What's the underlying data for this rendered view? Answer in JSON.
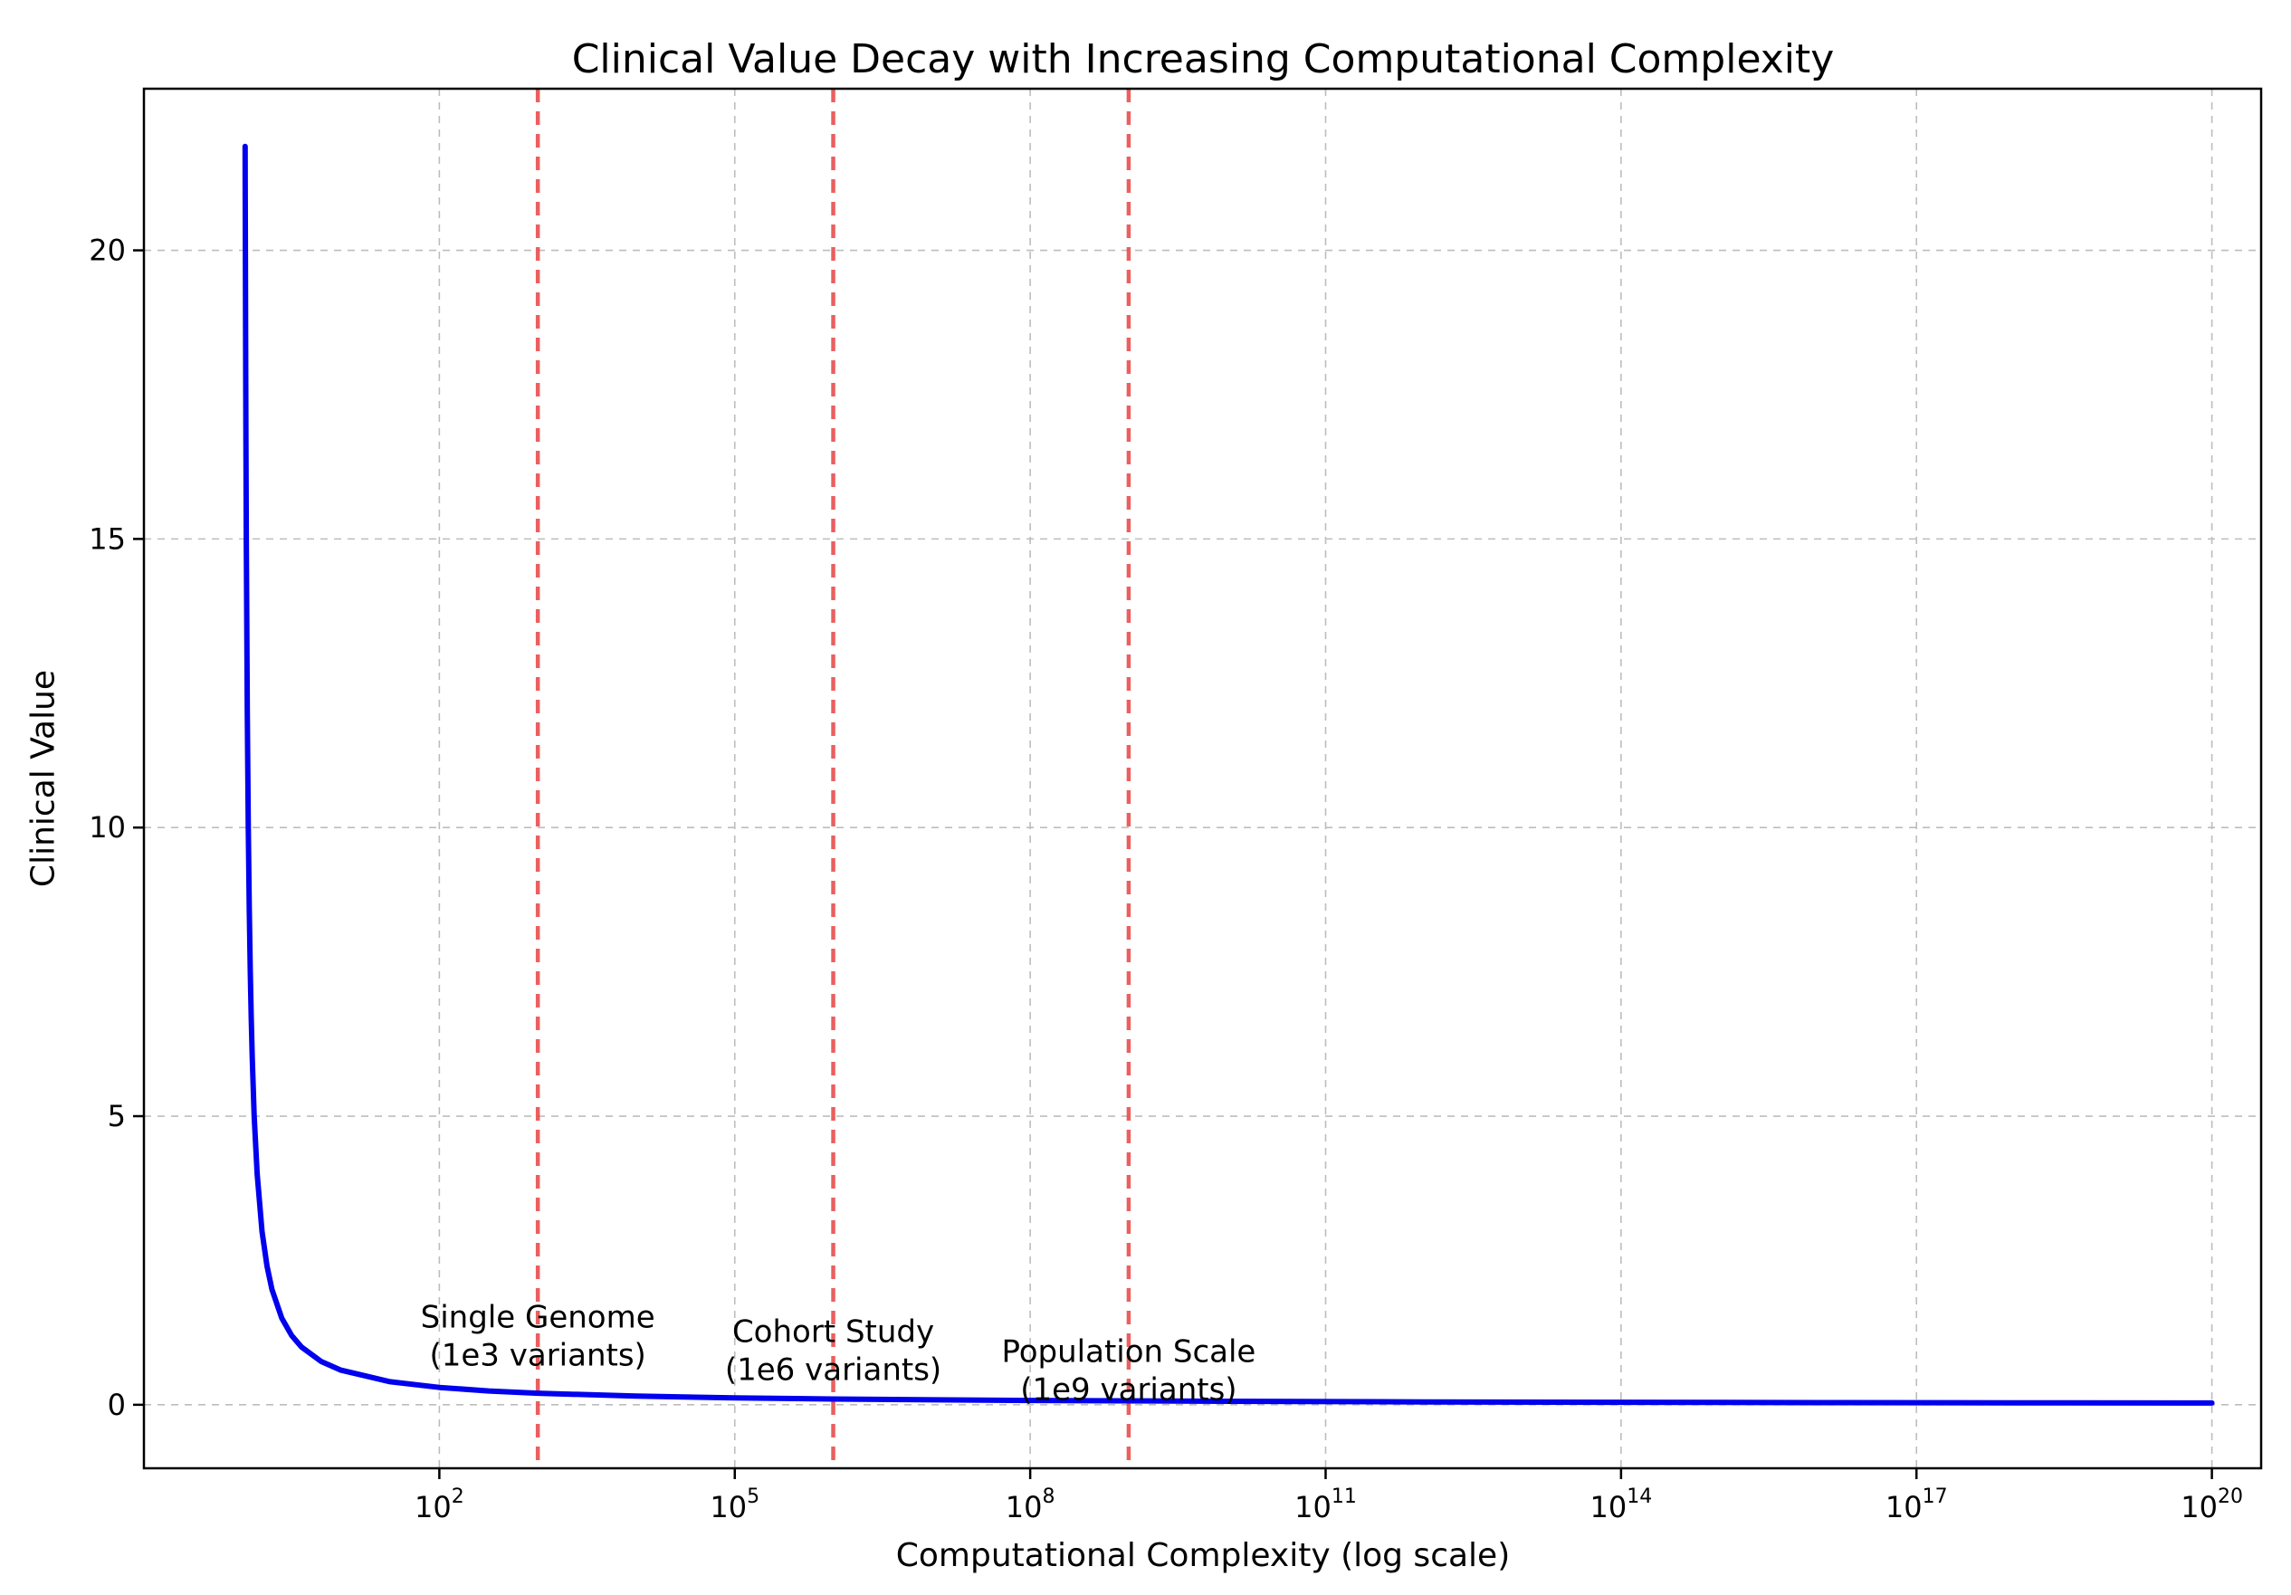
{
  "chart_data": {
    "type": "line",
    "title": "Clinical Value Decay with Increasing Computational Complexity",
    "xlabel": "Computational Complexity (log scale)",
    "ylabel": "Clinical Value",
    "x_scale": "log",
    "xlim_log10": [
      -1,
      20.5
    ],
    "ylim": [
      -1.1,
      22.8
    ],
    "x_tick_base": "10",
    "x_tick_exponents": [
      2,
      5,
      8,
      11,
      14,
      17,
      20
    ],
    "y_ticks": [
      0,
      5,
      10,
      15,
      20
    ],
    "grid": true,
    "grid_style": "dashed",
    "legend": "none",
    "colors": {
      "curve": "#0000ee",
      "vline": "#e84343",
      "grid": "#bdbdbd",
      "spine": "#000000",
      "text": "#000000"
    },
    "series": [
      {
        "name": "clinical-value-curve",
        "color": "#0000ee",
        "points_log10x_y": [
          [
            0.0275,
            21.8
          ],
          [
            0.0285,
            21.05
          ],
          [
            0.03,
            20.0
          ],
          [
            0.032,
            18.75
          ],
          [
            0.034,
            17.65
          ],
          [
            0.036,
            16.67
          ],
          [
            0.04,
            15.0
          ],
          [
            0.045,
            13.33
          ],
          [
            0.05,
            12.0
          ],
          [
            0.055,
            10.91
          ],
          [
            0.06,
            10.0
          ],
          [
            0.07,
            8.57
          ],
          [
            0.08,
            7.5
          ],
          [
            0.09,
            6.67
          ],
          [
            0.1,
            6.0
          ],
          [
            0.12,
            5.0
          ],
          [
            0.15,
            4.0
          ],
          [
            0.2,
            3.0
          ],
          [
            0.25,
            2.4
          ],
          [
            0.3,
            2.0
          ],
          [
            0.4,
            1.5
          ],
          [
            0.5,
            1.2
          ],
          [
            0.6,
            1.0
          ],
          [
            0.8,
            0.75
          ],
          [
            1.0,
            0.6
          ],
          [
            1.5,
            0.4
          ],
          [
            2.0,
            0.3
          ],
          [
            2.5,
            0.24
          ],
          [
            3.0,
            0.2
          ],
          [
            4.0,
            0.15
          ],
          [
            5.0,
            0.12
          ],
          [
            6.0,
            0.1
          ],
          [
            8.0,
            0.075
          ],
          [
            10.0,
            0.06
          ],
          [
            12.0,
            0.05
          ],
          [
            14.0,
            0.043
          ],
          [
            16.0,
            0.0375
          ],
          [
            18.0,
            0.0333
          ],
          [
            20.0,
            0.03
          ]
        ]
      }
    ],
    "vlines": [
      {
        "log10x": 3,
        "color": "#e84343",
        "label_line1": "Single Genome",
        "label_line2": "(1e3 variants)",
        "label_y_center": 1.2
      },
      {
        "log10x": 6,
        "color": "#e84343",
        "label_line1": "Cohort Study",
        "label_line2": "(1e6 variants)",
        "label_y_center": 0.95
      },
      {
        "log10x": 9,
        "color": "#e84343",
        "label_line1": "Population Scale",
        "label_line2": "(1e9 variants)",
        "label_y_center": 0.6
      }
    ]
  }
}
